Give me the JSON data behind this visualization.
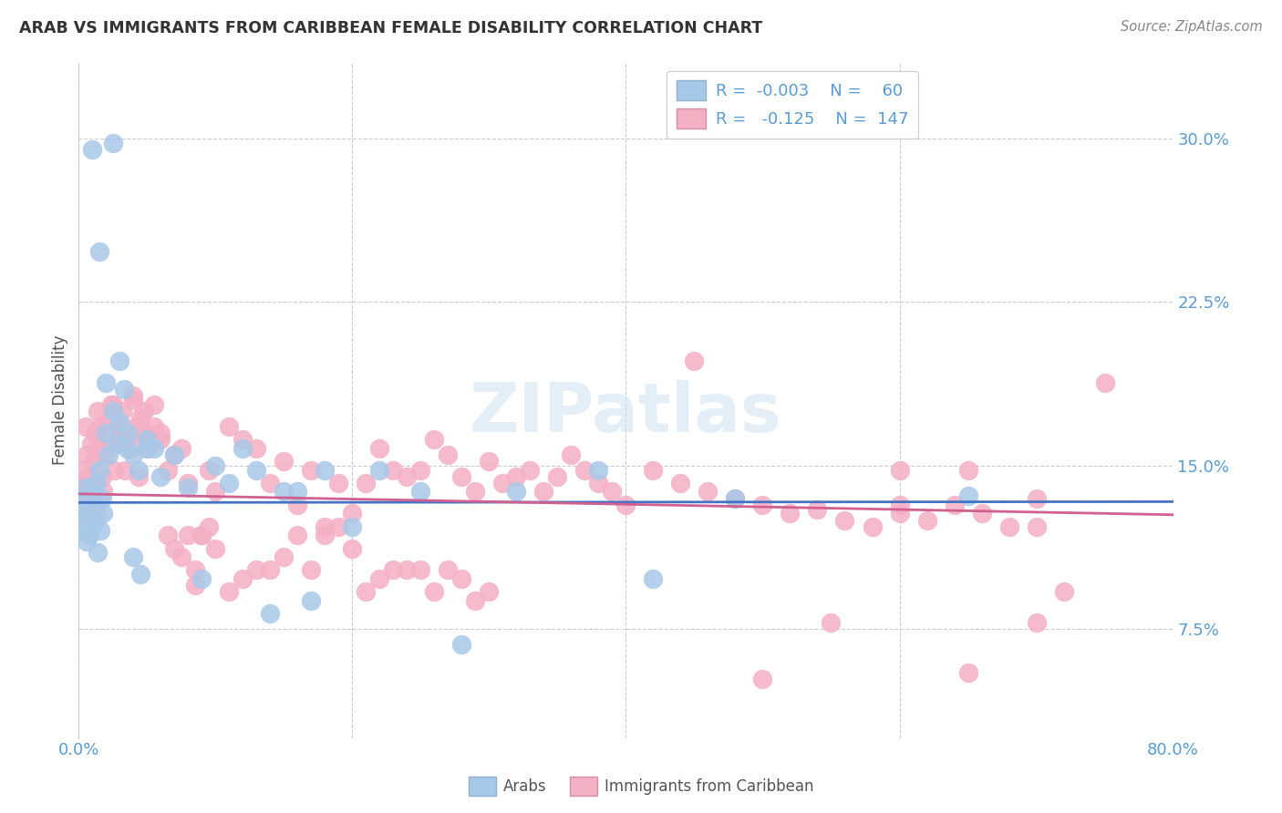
{
  "title": "ARAB VS IMMIGRANTS FROM CARIBBEAN FEMALE DISABILITY CORRELATION CHART",
  "source": "Source: ZipAtlas.com",
  "ylabel": "Female Disability",
  "ytick_vals": [
    0.075,
    0.15,
    0.225,
    0.3
  ],
  "xlim": [
    0.0,
    0.8
  ],
  "ylim": [
    0.025,
    0.335
  ],
  "color_arab": "#a8c8e8",
  "color_carib": "#f4b0c4",
  "color_line_arab": "#4472c4",
  "color_line_carib": "#d06090",
  "color_axis_ticks": "#5b9bd5",
  "watermark": "ZIPatlas",
  "arab_x": [
    0.001,
    0.002,
    0.003,
    0.004,
    0.005,
    0.006,
    0.007,
    0.008,
    0.009,
    0.01,
    0.011,
    0.012,
    0.013,
    0.014,
    0.015,
    0.016,
    0.017,
    0.018,
    0.02,
    0.022,
    0.025,
    0.028,
    0.03,
    0.033,
    0.036,
    0.04,
    0.044,
    0.05,
    0.055,
    0.06,
    0.07,
    0.08,
    0.09,
    0.1,
    0.11,
    0.12,
    0.13,
    0.14,
    0.15,
    0.16,
    0.17,
    0.18,
    0.2,
    0.22,
    0.25,
    0.28,
    0.32,
    0.38,
    0.42,
    0.48,
    0.01,
    0.015,
    0.02,
    0.025,
    0.03,
    0.035,
    0.04,
    0.045,
    0.05,
    0.65
  ],
  "arab_y": [
    0.135,
    0.12,
    0.13,
    0.125,
    0.14,
    0.115,
    0.128,
    0.118,
    0.132,
    0.122,
    0.138,
    0.125,
    0.142,
    0.11,
    0.148,
    0.12,
    0.135,
    0.128,
    0.165,
    0.155,
    0.175,
    0.16,
    0.17,
    0.185,
    0.165,
    0.155,
    0.148,
    0.162,
    0.158,
    0.145,
    0.155,
    0.14,
    0.098,
    0.15,
    0.142,
    0.158,
    0.148,
    0.082,
    0.138,
    0.138,
    0.088,
    0.148,
    0.122,
    0.148,
    0.138,
    0.068,
    0.138,
    0.148,
    0.098,
    0.135,
    0.295,
    0.248,
    0.188,
    0.298,
    0.198,
    0.158,
    0.108,
    0.1,
    0.158,
    0.136
  ],
  "carib_x": [
    0.001,
    0.002,
    0.003,
    0.004,
    0.005,
    0.006,
    0.007,
    0.008,
    0.009,
    0.01,
    0.011,
    0.012,
    0.013,
    0.014,
    0.015,
    0.016,
    0.017,
    0.018,
    0.019,
    0.02,
    0.022,
    0.024,
    0.026,
    0.028,
    0.03,
    0.032,
    0.034,
    0.036,
    0.038,
    0.04,
    0.042,
    0.044,
    0.046,
    0.048,
    0.05,
    0.055,
    0.06,
    0.065,
    0.07,
    0.075,
    0.08,
    0.085,
    0.09,
    0.095,
    0.1,
    0.11,
    0.12,
    0.13,
    0.14,
    0.15,
    0.16,
    0.17,
    0.18,
    0.19,
    0.2,
    0.21,
    0.22,
    0.23,
    0.24,
    0.25,
    0.26,
    0.27,
    0.28,
    0.29,
    0.3,
    0.31,
    0.32,
    0.33,
    0.34,
    0.35,
    0.36,
    0.37,
    0.38,
    0.39,
    0.4,
    0.42,
    0.44,
    0.46,
    0.48,
    0.5,
    0.52,
    0.54,
    0.56,
    0.58,
    0.6,
    0.62,
    0.64,
    0.66,
    0.68,
    0.7,
    0.025,
    0.03,
    0.035,
    0.04,
    0.045,
    0.05,
    0.055,
    0.06,
    0.065,
    0.07,
    0.075,
    0.08,
    0.085,
    0.09,
    0.095,
    0.1,
    0.11,
    0.12,
    0.13,
    0.14,
    0.15,
    0.16,
    0.17,
    0.18,
    0.19,
    0.2,
    0.21,
    0.22,
    0.23,
    0.24,
    0.25,
    0.26,
    0.27,
    0.28,
    0.29,
    0.3,
    0.6,
    0.65,
    0.7,
    0.72,
    0.45,
    0.5,
    0.55,
    0.6,
    0.65,
    0.7,
    0.75
  ],
  "carib_y": [
    0.148,
    0.138,
    0.128,
    0.142,
    0.168,
    0.155,
    0.145,
    0.135,
    0.16,
    0.142,
    0.152,
    0.165,
    0.128,
    0.175,
    0.158,
    0.168,
    0.145,
    0.138,
    0.155,
    0.17,
    0.16,
    0.178,
    0.148,
    0.168,
    0.162,
    0.175,
    0.148,
    0.165,
    0.158,
    0.18,
    0.168,
    0.145,
    0.165,
    0.175,
    0.158,
    0.168,
    0.162,
    0.148,
    0.155,
    0.158,
    0.142,
    0.095,
    0.118,
    0.148,
    0.138,
    0.168,
    0.162,
    0.158,
    0.142,
    0.152,
    0.132,
    0.148,
    0.122,
    0.142,
    0.128,
    0.142,
    0.158,
    0.148,
    0.145,
    0.148,
    0.162,
    0.155,
    0.145,
    0.138,
    0.152,
    0.142,
    0.145,
    0.148,
    0.138,
    0.145,
    0.155,
    0.148,
    0.142,
    0.138,
    0.132,
    0.148,
    0.142,
    0.138,
    0.135,
    0.132,
    0.128,
    0.13,
    0.125,
    0.122,
    0.128,
    0.125,
    0.132,
    0.128,
    0.122,
    0.135,
    0.178,
    0.168,
    0.162,
    0.182,
    0.172,
    0.165,
    0.178,
    0.165,
    0.118,
    0.112,
    0.108,
    0.118,
    0.102,
    0.118,
    0.122,
    0.112,
    0.092,
    0.098,
    0.102,
    0.102,
    0.108,
    0.118,
    0.102,
    0.118,
    0.122,
    0.112,
    0.092,
    0.098,
    0.102,
    0.102,
    0.102,
    0.092,
    0.102,
    0.098,
    0.088,
    0.092,
    0.132,
    0.055,
    0.078,
    0.092,
    0.198,
    0.052,
    0.078,
    0.148,
    0.148,
    0.122,
    0.188
  ]
}
